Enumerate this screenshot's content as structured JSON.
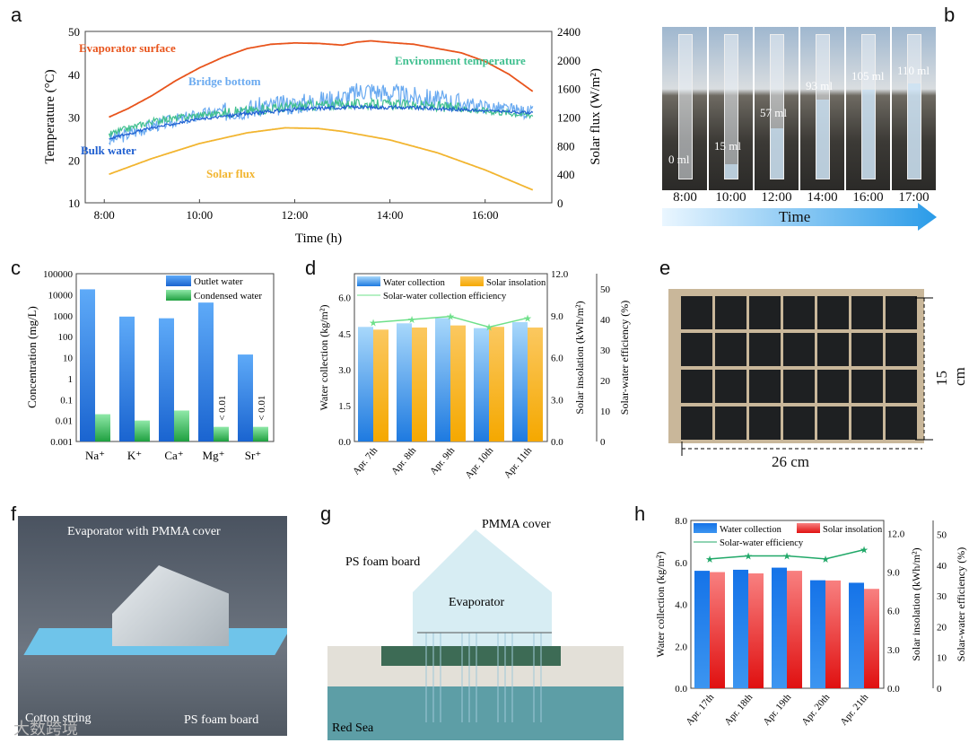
{
  "panel_labels": {
    "a": "a",
    "b": "b",
    "c": "c",
    "d": "d",
    "e": "e",
    "f": "f",
    "g": "g",
    "h": "h"
  },
  "chart_data": [
    {
      "id": "a",
      "type": "line",
      "xlabel": "Time (h)",
      "ylabel": "Temperature (°C)",
      "y2label": "Solar flux (W/m²)",
      "xlim": [
        7.6,
        17.4
      ],
      "ylim": [
        10,
        50
      ],
      "y2lim": [
        0,
        2400
      ],
      "xticks": [
        8,
        10,
        12,
        14,
        16
      ],
      "xtick_labels": [
        "8:00",
        "10:00",
        "12:00",
        "14:00",
        "16:00"
      ],
      "yticks": [
        10,
        20,
        30,
        40,
        50
      ],
      "y2ticks": [
        0,
        400,
        800,
        1200,
        1600,
        2000,
        2400
      ],
      "series": [
        {
          "name": "Evaporator surface",
          "color": "#e8541c",
          "axis": "left",
          "x": [
            8.1,
            8.5,
            9,
            9.5,
            10,
            10.5,
            11,
            11.5,
            12,
            12.5,
            13,
            13.3,
            13.6,
            14,
            14.5,
            15,
            15.5,
            16,
            16.5,
            17
          ],
          "y": [
            30,
            32,
            35,
            38.5,
            41.5,
            44,
            46,
            47,
            47.3,
            47.2,
            46.8,
            47.5,
            47.8,
            47.4,
            47,
            46,
            45,
            43,
            40,
            36
          ]
        },
        {
          "name": "Bridge bottom",
          "color": "#6aaaf0",
          "axis": "left",
          "noise": 1.6,
          "x": [
            8.1,
            9,
            10,
            11,
            12,
            13,
            13.5,
            14,
            15,
            16,
            17
          ],
          "y": [
            24.5,
            28,
            30.5,
            32,
            33,
            34.5,
            36.5,
            35.5,
            34,
            32.5,
            31
          ]
        },
        {
          "name": "Environment temperature",
          "color": "#3fbf8f",
          "axis": "left",
          "noise": 0.8,
          "x": [
            8.1,
            9,
            10,
            11,
            12,
            13,
            14,
            15,
            16,
            17
          ],
          "y": [
            26,
            29,
            30.5,
            31.5,
            32.5,
            33,
            33,
            32.5,
            31.5,
            30.5
          ]
        },
        {
          "name": "Bulk water",
          "color": "#1f5fd0",
          "axis": "left",
          "noise": 0.3,
          "x": [
            8.1,
            9,
            10,
            11,
            12,
            13,
            14,
            15,
            16,
            17
          ],
          "y": [
            25,
            27.5,
            29.5,
            30.8,
            31.8,
            32.3,
            32.3,
            32,
            31.5,
            31
          ]
        },
        {
          "name": "Solar flux",
          "color": "#f2b530",
          "axis": "right",
          "x": [
            8.1,
            9,
            10,
            11,
            11.8,
            12.5,
            13,
            14,
            15,
            16,
            17
          ],
          "y": [
            400,
            620,
            830,
            980,
            1050,
            1040,
            1000,
            880,
            700,
            460,
            180
          ]
        }
      ],
      "annotations": [
        "Evaporator surface",
        "Bridge bottom",
        "Environment temperature",
        "Bulk water",
        "Solar flux"
      ]
    },
    {
      "id": "c",
      "type": "bar",
      "ylabel": "Concentration (mg/L)",
      "yscale": "log",
      "ylim": [
        0.001,
        100000
      ],
      "ytick_labels": [
        "0.001",
        "0.01",
        "0.1",
        "1",
        "10",
        "100",
        "1000",
        "10000",
        "100000"
      ],
      "categories": [
        "Na⁺",
        "K⁺",
        "Ca⁺",
        "Mg⁺",
        "Sr⁺"
      ],
      "series": [
        {
          "name": "Outlet water",
          "values": [
            18000,
            900,
            750,
            4200,
            14
          ]
        },
        {
          "name": "Condensed water",
          "values": [
            0.02,
            0.01,
            0.03,
            0.005,
            0.005
          ]
        }
      ],
      "annotations": [
        "< 0.01",
        "< 0.01"
      ]
    },
    {
      "id": "d",
      "type": "bar",
      "ylabel": "Water collection (kg/m²)",
      "y2label": "Solar insolation (kWh/m²)",
      "y3label": "Solar-water efficiency (%)",
      "ylim": [
        0,
        7
      ],
      "y2lim": [
        0,
        12
      ],
      "y3lim": [
        0,
        55
      ],
      "yticks": [
        "0.0",
        "1.5",
        "3.0",
        "4.5",
        "6.0"
      ],
      "y2ticks": [
        "0.0",
        "3.0",
        "6.0",
        "9.0",
        "12.0"
      ],
      "y3ticks": [
        "0",
        "10",
        "20",
        "30",
        "40",
        "50"
      ],
      "categories": [
        "Apr. 7th",
        "Apr. 8th",
        "Apr. 9th",
        "Apr. 10th",
        "Apr. 11th"
      ],
      "series": [
        {
          "name": "Water collection",
          "values": [
            4.78,
            4.93,
            5.15,
            4.73,
            4.98
          ]
        },
        {
          "name": "Solar insolation",
          "values": [
            8.0,
            8.15,
            8.3,
            8.2,
            8.15
          ]
        },
        {
          "name": "Solar-water collection efficiency",
          "values": [
            39,
            40,
            41,
            37.5,
            40.5
          ]
        }
      ]
    },
    {
      "id": "h",
      "type": "bar",
      "ylabel": "Water collection (kg/m²)",
      "y2label": "Solar insolation (kWh/m²)",
      "y3label": "Solar-water efficiency (%)",
      "ylim": [
        0,
        8
      ],
      "y2lim": [
        0,
        13
      ],
      "y3lim": [
        0,
        54.5
      ],
      "yticks": [
        "0.0",
        "2.0",
        "4.0",
        "6.0",
        "8.0"
      ],
      "y2ticks": [
        "0.0",
        "3.0",
        "6.0",
        "9.0",
        "12.0"
      ],
      "y3ticks": [
        "0",
        "10",
        "20",
        "30",
        "40",
        "50"
      ],
      "categories": [
        "Apr. 17th",
        "Apr. 18th",
        "Apr. 19th",
        "Apr. 20th",
        "Apr. 21th"
      ],
      "series": [
        {
          "name": "Water collection",
          "values": [
            5.6,
            5.65,
            5.75,
            5.15,
            5.03
          ]
        },
        {
          "name": "Solar insolation",
          "values": [
            9.0,
            8.9,
            9.1,
            8.35,
            7.7
          ]
        },
        {
          "name": "Solar-water efficiency",
          "values": [
            42,
            43,
            43,
            42,
            45
          ]
        }
      ]
    }
  ],
  "panel_b": {
    "times": [
      "8:00",
      "10:00",
      "12:00",
      "14:00",
      "16:00",
      "17:00"
    ],
    "volumes": [
      "0 ml",
      "15 ml",
      "57 ml",
      "93 ml",
      "105 ml",
      "110 ml"
    ],
    "fill": [
      0,
      0.1,
      0.35,
      0.55,
      0.62,
      0.66
    ],
    "axis_label": "Time"
  },
  "panel_e": {
    "height_label": "15 cm",
    "width_label": "26 cm"
  },
  "panel_f": {
    "labels": [
      "Evaporator with PMMA cover",
      "Cotton string",
      "PS foam board"
    ]
  },
  "panel_g": {
    "labels": [
      "PMMA cover",
      "PS foam board",
      "Evaporator",
      "Red Sea"
    ]
  },
  "watermark": "大数跨境"
}
